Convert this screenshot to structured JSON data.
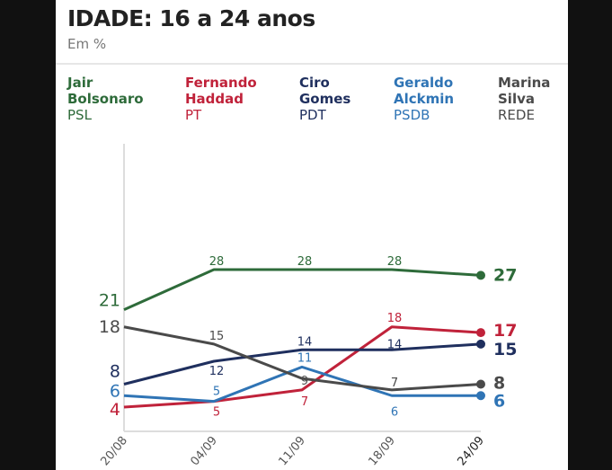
{
  "title": "IDADE: 16 a 24 anos",
  "subtitle": "Em %",
  "legend": [
    {
      "first": "Jair",
      "last": "Bolsonaro",
      "party": "PSL",
      "color": "#2e6b3a"
    },
    {
      "first": "Fernando",
      "last": "Haddad",
      "party": "PT",
      "color": "#c0223a"
    },
    {
      "first": "Ciro",
      "last": "Gomes",
      "party": "PDT",
      "color": "#1f2f5e"
    },
    {
      "first": "Geraldo",
      "last": "Alckmin",
      "party": "PSDB",
      "color": "#2f74b5"
    },
    {
      "first": "Marina",
      "last": "Silva",
      "party": "REDE",
      "color": "#4a4a4a"
    }
  ],
  "chart_data": {
    "type": "line",
    "title": "IDADE: 16 a 24 anos",
    "ylabel": "Em %",
    "categories": [
      "20/08",
      "04/09",
      "11/09",
      "18/09",
      "24/09"
    ],
    "ylim": [
      0,
      30
    ],
    "grid": false,
    "legend_placement": "top",
    "series": [
      {
        "name": "Jair Bolsonaro",
        "color": "#2e6b3a",
        "values": [
          21,
          28,
          28,
          28,
          27
        ]
      },
      {
        "name": "Fernando Haddad",
        "color": "#c0223a",
        "values": [
          4,
          5,
          7,
          18,
          17
        ]
      },
      {
        "name": "Ciro Gomes",
        "color": "#1f2f5e",
        "values": [
          8,
          12,
          14,
          14,
          15
        ]
      },
      {
        "name": "Geraldo Alckmin",
        "color": "#2f74b5",
        "values": [
          6,
          5,
          11,
          6,
          6
        ]
      },
      {
        "name": "Marina Silva",
        "color": "#4a4a4a",
        "values": [
          18,
          15,
          9,
          7,
          8
        ]
      }
    ]
  }
}
